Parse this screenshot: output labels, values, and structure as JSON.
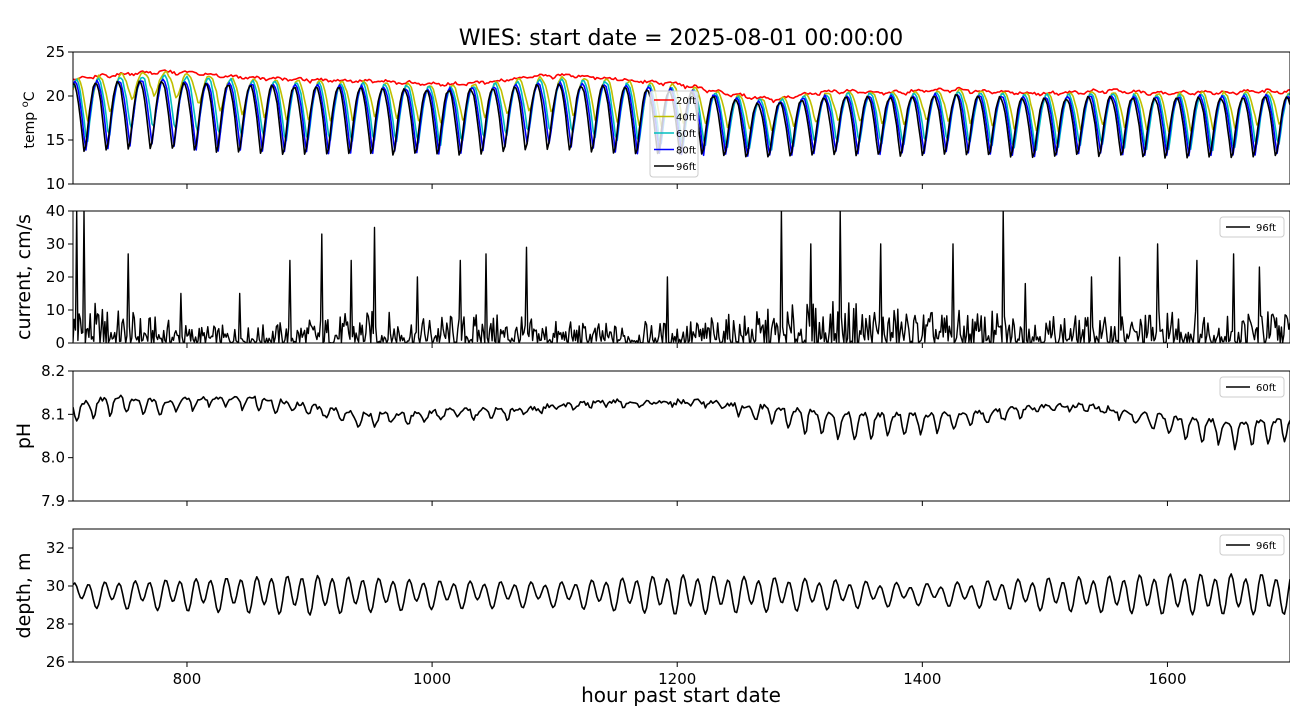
{
  "figure": {
    "title": "WIES: start date = 2025-08-01 00:00:00",
    "xlabel": "hour past start date"
  },
  "chart_data": [
    {
      "type": "line",
      "panel": "temperature",
      "ylabel_prefix": "temp ",
      "ylabel_sup": "o",
      "ylabel_suffix": "C",
      "xlim": [
        707,
        1700
      ],
      "ylim": [
        10,
        25
      ],
      "yticks": [
        10,
        15,
        20,
        25
      ],
      "xticks": [
        800,
        1000,
        1200,
        1400,
        1600
      ],
      "legend_position": "top-center",
      "series": [
        {
          "name": "20ft",
          "color": "#ff0000",
          "top": [
            22.0,
            22.4,
            22.7,
            22.9,
            22.7,
            22.3,
            22.1,
            22.0,
            21.9,
            21.8,
            21.8,
            21.6,
            21.4,
            21.5,
            21.8,
            22.3,
            22.5,
            22.3,
            22.0,
            21.7,
            21.4,
            20.8,
            20.2,
            19.7,
            20.3,
            20.7,
            20.6,
            20.5,
            20.8,
            20.9,
            20.6,
            20.5,
            20.4,
            20.6,
            20.7,
            20.6,
            20.4,
            20.6,
            20.5,
            20.7,
            20.6
          ],
          "bottom": [
            21.8,
            22.1,
            22.4,
            22.5,
            22.4,
            22.1,
            21.9,
            21.8,
            21.6,
            21.6,
            21.5,
            21.3,
            21.2,
            21.3,
            21.6,
            22.0,
            22.1,
            22.0,
            21.8,
            21.4,
            21.1,
            20.4,
            19.7,
            19.4,
            20.0,
            20.3,
            20.3,
            20.2,
            20.4,
            20.4,
            20.3,
            20.2,
            20.1,
            20.2,
            20.4,
            20.2,
            20.1,
            20.2,
            20.2,
            20.3,
            20.2
          ],
          "period": 18
        },
        {
          "name": "40ft",
          "color": "#bfbf00",
          "top": [
            22.0,
            22.3,
            22.6,
            22.7,
            22.5,
            22.1,
            21.9,
            21.8,
            21.7,
            21.6,
            21.6,
            21.4,
            21.2,
            21.3,
            21.6,
            22.1,
            22.2,
            22.1,
            21.8,
            21.5,
            21.2,
            20.6,
            20.0,
            19.6,
            20.2,
            20.5,
            20.5,
            20.4,
            20.6,
            20.7,
            20.5,
            20.4,
            20.3,
            20.4,
            20.5,
            20.4,
            20.3,
            20.4,
            20.4,
            20.5,
            20.4
          ],
          "bottom": [
            16.0,
            17.5,
            19.5,
            20.0,
            19.0,
            18.0,
            17.5,
            17.0,
            17.0,
            17.0,
            17.5,
            17.0,
            16.5,
            17.0,
            17.5,
            18.0,
            18.0,
            17.0,
            16.5,
            16.0,
            16.5,
            16.5,
            16.0,
            16.0,
            16.5,
            17.0,
            17.0,
            16.5,
            17.0,
            17.0,
            16.5,
            16.0,
            15.5,
            16.0,
            16.5,
            16.0,
            15.5,
            16.0,
            16.0,
            16.5,
            16.5
          ],
          "period": 18
        },
        {
          "name": "60ft",
          "color": "#00bfbf",
          "top": [
            21.8,
            22.0,
            22.2,
            22.3,
            22.1,
            21.9,
            21.7,
            21.6,
            21.5,
            21.4,
            21.4,
            21.2,
            21.0,
            21.1,
            21.4,
            21.8,
            21.9,
            21.8,
            21.5,
            21.2,
            20.9,
            20.4,
            19.8,
            19.5,
            20.0,
            20.3,
            20.3,
            20.2,
            20.4,
            20.5,
            20.3,
            20.2,
            20.1,
            20.2,
            20.3,
            20.2,
            20.1,
            20.2,
            20.2,
            20.3,
            20.2
          ],
          "bottom": [
            14.0,
            15.0,
            16.0,
            16.0,
            15.5,
            15.0,
            15.0,
            14.5,
            14.5,
            14.5,
            14.5,
            14.5,
            14.0,
            14.5,
            15.0,
            15.5,
            15.5,
            15.0,
            14.5,
            14.0,
            14.0,
            14.0,
            13.5,
            13.5,
            14.0,
            14.5,
            14.5,
            14.0,
            14.5,
            14.5,
            14.0,
            13.5,
            13.5,
            14.0,
            14.0,
            13.5,
            13.5,
            13.5,
            13.5,
            14.0,
            14.0
          ],
          "period": 18
        },
        {
          "name": "80ft",
          "color": "#0000ff",
          "top": [
            21.5,
            21.7,
            21.8,
            21.8,
            21.6,
            21.5,
            21.4,
            21.3,
            21.2,
            21.1,
            21.1,
            20.9,
            20.8,
            20.9,
            21.1,
            21.4,
            21.5,
            21.4,
            21.2,
            21.0,
            20.7,
            20.2,
            19.6,
            19.3,
            19.8,
            20.1,
            20.1,
            20.0,
            20.2,
            20.3,
            20.1,
            20.0,
            19.9,
            20.0,
            20.1,
            20.0,
            19.9,
            20.0,
            20.0,
            20.1,
            20.0
          ],
          "bottom": [
            13.5,
            14.0,
            14.5,
            14.5,
            14.0,
            13.8,
            13.8,
            13.6,
            13.6,
            13.6,
            13.6,
            13.6,
            13.4,
            13.6,
            14.0,
            14.5,
            14.5,
            14.0,
            13.6,
            13.4,
            13.4,
            13.4,
            13.2,
            13.2,
            13.4,
            13.6,
            13.6,
            13.4,
            13.6,
            13.6,
            13.4,
            13.2,
            13.2,
            13.4,
            13.4,
            13.2,
            13.2,
            13.2,
            13.2,
            13.4,
            13.4
          ],
          "period": 18
        },
        {
          "name": "96ft",
          "color": "#000000",
          "top": [
            21.3,
            21.5,
            21.6,
            21.6,
            21.4,
            21.3,
            21.2,
            21.1,
            21.0,
            20.9,
            20.9,
            20.7,
            20.6,
            20.7,
            20.9,
            21.2,
            21.3,
            21.2,
            21.0,
            20.8,
            20.5,
            20.0,
            19.4,
            19.1,
            19.6,
            19.9,
            19.9,
            19.8,
            20.0,
            20.1,
            19.9,
            19.8,
            19.7,
            19.8,
            19.9,
            19.8,
            19.7,
            19.8,
            19.8,
            19.9,
            19.8
          ],
          "bottom": [
            13.0,
            13.2,
            13.5,
            13.5,
            13.2,
            13.0,
            13.0,
            12.9,
            12.9,
            12.9,
            12.9,
            12.9,
            12.8,
            12.9,
            13.2,
            13.5,
            13.5,
            13.2,
            12.9,
            12.8,
            12.8,
            12.8,
            12.6,
            12.6,
            12.8,
            12.9,
            12.9,
            12.8,
            12.9,
            12.9,
            12.8,
            12.6,
            12.6,
            12.8,
            12.8,
            12.6,
            12.6,
            12.6,
            12.6,
            12.8,
            12.8
          ],
          "period": 18
        }
      ]
    },
    {
      "type": "line",
      "panel": "current",
      "ylabel": "current, cm/s",
      "xlim": [
        707,
        1700
      ],
      "ylim": [
        0,
        40
      ],
      "yticks": [
        0,
        10,
        20,
        30,
        40
      ],
      "xticks": [
        800,
        1000,
        1200,
        1400,
        1600
      ],
      "legend_position": "top-right",
      "series": [
        {
          "name": "96ft",
          "color": "#000000",
          "envelope_x": [
            707,
            750,
            800,
            850,
            900,
            950,
            1000,
            1050,
            1100,
            1150,
            1200,
            1250,
            1300,
            1350,
            1400,
            1450,
            1500,
            1550,
            1600,
            1650,
            1700
          ],
          "envelope_max": [
            14,
            10,
            6,
            5,
            8,
            10,
            9,
            9,
            7,
            6,
            7,
            9,
            12,
            13,
            10,
            10,
            9,
            8,
            11,
            11,
            11
          ],
          "spikes": [
            [
              710,
              40
            ],
            [
              716,
              40
            ],
            [
              752,
              27
            ],
            [
              795,
              15
            ],
            [
              843,
              15
            ],
            [
              884,
              25
            ],
            [
              910,
              33
            ],
            [
              934,
              25
            ],
            [
              953,
              35
            ],
            [
              988,
              20
            ],
            [
              1023,
              25
            ],
            [
              1044,
              27
            ],
            [
              1077,
              29
            ],
            [
              1192,
              20
            ],
            [
              1285,
              40
            ],
            [
              1309,
              30
            ],
            [
              1333,
              40
            ],
            [
              1366,
              30
            ],
            [
              1425,
              30
            ],
            [
              1466,
              40
            ],
            [
              1484,
              18
            ],
            [
              1538,
              20
            ],
            [
              1561,
              26
            ],
            [
              1592,
              30
            ],
            [
              1624,
              25
            ],
            [
              1654,
              27
            ],
            [
              1675,
              23
            ]
          ]
        }
      ]
    },
    {
      "type": "line",
      "panel": "pH",
      "ylabel": "pH",
      "xlim": [
        707,
        1700
      ],
      "ylim": [
        7.9,
        8.2
      ],
      "yticks": [
        7.9,
        8.0,
        8.1,
        8.2
      ],
      "ytick_labels": [
        "7.9",
        "8.0",
        "8.1",
        "8.2"
      ],
      "xticks": [
        800,
        1000,
        1200,
        1400,
        1600
      ],
      "legend_position": "top-right",
      "series": [
        {
          "name": "60ft",
          "color": "#000000",
          "x": [
            707,
            740,
            780,
            820,
            860,
            900,
            940,
            980,
            1020,
            1060,
            1100,
            1140,
            1180,
            1220,
            1260,
            1300,
            1340,
            1380,
            1420,
            1460,
            1500,
            1540,
            1580,
            1620,
            1660,
            1700
          ],
          "mid": [
            8.12,
            8.14,
            8.13,
            8.14,
            8.14,
            8.12,
            8.1,
            8.1,
            8.11,
            8.11,
            8.12,
            8.13,
            8.13,
            8.13,
            8.12,
            8.11,
            8.1,
            8.1,
            8.1,
            8.11,
            8.12,
            8.12,
            8.1,
            8.09,
            8.08,
            8.09
          ],
          "amp": [
            0.04,
            0.04,
            0.03,
            0.02,
            0.03,
            0.02,
            0.03,
            0.02,
            0.02,
            0.02,
            0.01,
            0.01,
            0.01,
            0.01,
            0.03,
            0.05,
            0.06,
            0.05,
            0.04,
            0.03,
            0.01,
            0.01,
            0.03,
            0.05,
            0.06,
            0.05
          ]
        }
      ]
    },
    {
      "type": "line",
      "panel": "depth",
      "ylabel": "depth, m",
      "xlim": [
        707,
        1700
      ],
      "ylim": [
        26,
        33
      ],
      "yticks": [
        26,
        28,
        30,
        32
      ],
      "xticks": [
        800,
        1000,
        1200,
        1400,
        1600
      ],
      "legend_position": "top-right",
      "series": [
        {
          "name": "96ft",
          "color": "#000000",
          "mean": 29.6,
          "x": [
            707,
            800,
            900,
            1000,
            1100,
            1200,
            1300,
            1400,
            1500,
            1600,
            1700
          ],
          "amplitude": [
            0.5,
            0.7,
            0.9,
            0.6,
            0.5,
            0.9,
            0.7,
            0.4,
            0.7,
            0.9,
            0.9
          ],
          "period_hours": 12.42
        }
      ]
    }
  ]
}
